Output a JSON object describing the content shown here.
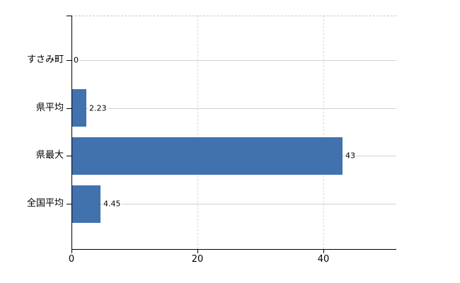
{
  "chart_data": {
    "type": "bar",
    "orientation": "horizontal",
    "title": "",
    "categories": [
      "すさみ町",
      "県平均",
      "県最大",
      "全国平均"
    ],
    "values": [
      0,
      2.23,
      43,
      4.45
    ],
    "value_labels": [
      "0",
      "2.23",
      "43",
      "4.45"
    ],
    "x_ticks": [
      0,
      20,
      40
    ],
    "x_tick_labels": [
      "0",
      "20",
      "40"
    ],
    "xlim": [
      0,
      51.6
    ],
    "grid": true,
    "legend": false,
    "colors": {
      "bar": "#4272ae",
      "axis": "#000000",
      "grid_horizontal": "#ccd4cc",
      "grid_vertical": "#d6d6d6",
      "top_border": "#c9c9c9",
      "text": "#000000",
      "background": "#ffffff"
    }
  }
}
